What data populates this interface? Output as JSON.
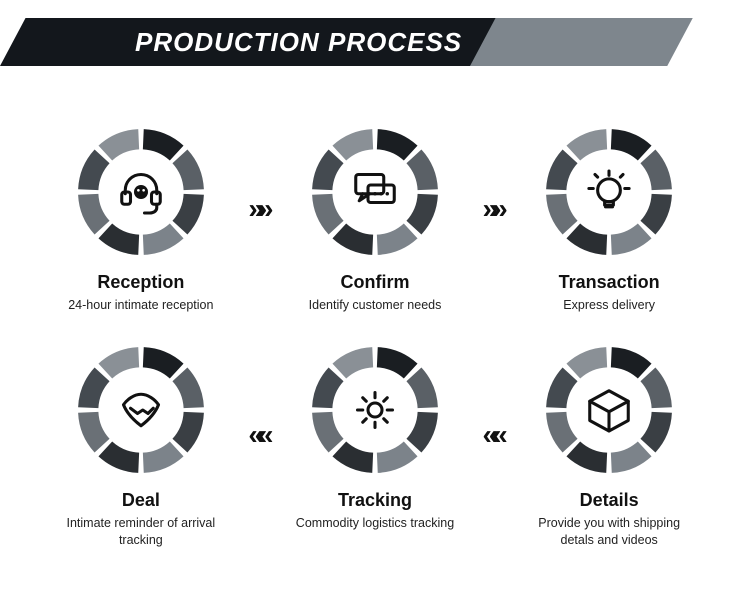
{
  "banner": {
    "title": "PRODUCTION PROCESS",
    "title_color": "#ffffff",
    "dark_bg": "#13171c",
    "grey_bg": "#7e868d",
    "title_fontsize": 26,
    "skew_deg": -28
  },
  "ring": {
    "outer_radius": 62,
    "inner_radius": 42,
    "gap_deg": 5,
    "segments": 8,
    "segment_colors": [
      "#1a1e22",
      "#5a6066",
      "#3a3f44",
      "#7c838a",
      "#2a2e32",
      "#6a7076",
      "#444a50",
      "#8a9096"
    ]
  },
  "arrow_glyph_fwd": "»»",
  "arrow_glyph_back": "««",
  "text_color": "#111111",
  "subtext_color": "#222222",
  "subtext_fontsize": 12.5,
  "title_fontsize": 18,
  "steps_row1": [
    {
      "key": "reception",
      "title": "Reception",
      "sub": "24-hour intimate reception",
      "icon": "headset"
    },
    {
      "key": "confirm",
      "title": "Confirm",
      "sub": "Identify customer needs",
      "icon": "chat"
    },
    {
      "key": "transaction",
      "title": "Transaction",
      "sub": "Express delivery",
      "icon": "bulb"
    }
  ],
  "steps_row2": [
    {
      "key": "deal",
      "title": "Deal",
      "sub": "Intimate reminder of arrival tracking",
      "icon": "handshake"
    },
    {
      "key": "tracking",
      "title": "Tracking",
      "sub": "Commodity logistics tracking",
      "icon": "gear"
    },
    {
      "key": "details",
      "title": "Details",
      "sub": "Provide you with shipping detals and videos",
      "icon": "box"
    }
  ]
}
